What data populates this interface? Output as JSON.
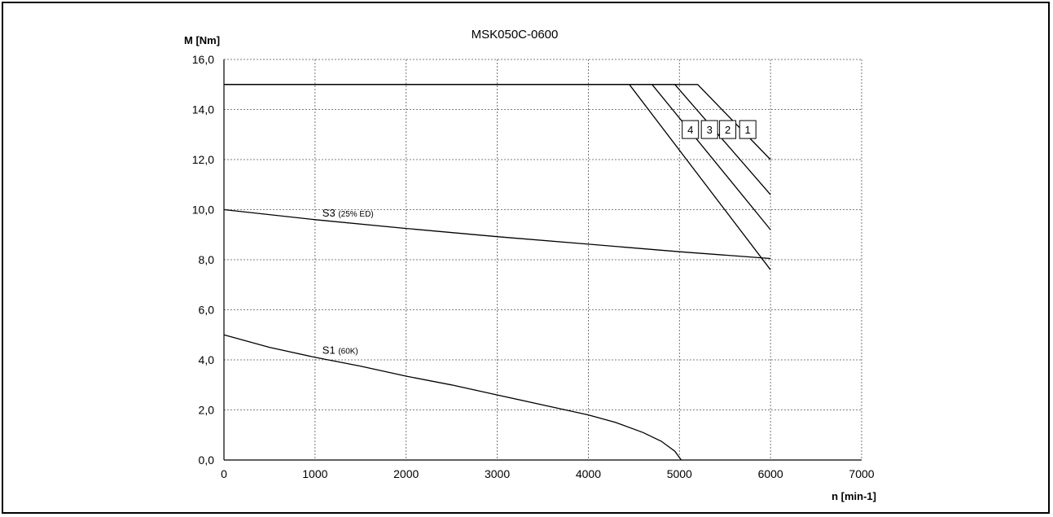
{
  "chart_data": {
    "type": "line",
    "title": "MSK050C-0600",
    "ylabel": "M [Nm]",
    "xlabel": "n [min-1]",
    "xlim": [
      0,
      7000
    ],
    "ylim": [
      0,
      16
    ],
    "xticks": [
      0,
      1000,
      2000,
      3000,
      4000,
      5000,
      6000,
      7000
    ],
    "xtick_labels": [
      "0",
      "1000",
      "2000",
      "3000",
      "4000",
      "5000",
      "6000",
      "7000"
    ],
    "yticks": [
      0,
      2,
      4,
      6,
      8,
      10,
      12,
      14,
      16
    ],
    "ytick_labels": [
      "0,0",
      "2,0",
      "4,0",
      "6,0",
      "8,0",
      "10,0",
      "12,0",
      "14,0",
      "16,0"
    ],
    "grid": true,
    "series": [
      {
        "name": "S1",
        "note": "(60K)",
        "x": [
          0,
          500,
          1000,
          1500,
          2000,
          2500,
          3000,
          3500,
          4000,
          4300,
          4600,
          4800,
          4950,
          5020
        ],
        "y": [
          5.0,
          4.5,
          4.1,
          3.75,
          3.35,
          3.0,
          2.6,
          2.2,
          1.8,
          1.5,
          1.1,
          0.75,
          0.35,
          0.0
        ]
      },
      {
        "name": "S3",
        "note": "(25% ED)",
        "x": [
          0,
          1000,
          2000,
          3000,
          4000,
          5000,
          6000
        ],
        "y": [
          10.0,
          9.6,
          9.25,
          8.92,
          8.62,
          8.32,
          8.05
        ]
      },
      {
        "name": "1",
        "x": [
          0,
          5200,
          6000
        ],
        "y": [
          15.0,
          15.0,
          12.0
        ]
      },
      {
        "name": "2",
        "x": [
          0,
          4950,
          6000
        ],
        "y": [
          15.0,
          15.0,
          10.6
        ]
      },
      {
        "name": "3",
        "x": [
          0,
          4700,
          6000
        ],
        "y": [
          15.0,
          15.0,
          9.2
        ]
      },
      {
        "name": "4",
        "x": [
          0,
          4450,
          6000
        ],
        "y": [
          15.0,
          15.0,
          7.6
        ]
      }
    ],
    "line_color": "#000000"
  }
}
